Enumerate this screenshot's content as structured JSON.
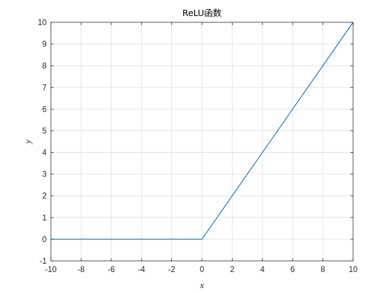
{
  "chart_data": {
    "type": "line",
    "title": "ReLU函数",
    "xlabel": "x",
    "ylabel": "y",
    "xlim": [
      -10,
      10
    ],
    "ylim": [
      -1,
      10
    ],
    "xticks": [
      -10,
      -8,
      -6,
      -4,
      -2,
      0,
      2,
      4,
      6,
      8,
      10
    ],
    "yticks": [
      -1,
      0,
      1,
      2,
      3,
      4,
      5,
      6,
      7,
      8,
      9,
      10
    ],
    "grid": true,
    "series": [
      {
        "color": "#0072BD",
        "x": [
          -10,
          0,
          10
        ],
        "y": [
          0,
          0,
          10
        ]
      }
    ]
  }
}
